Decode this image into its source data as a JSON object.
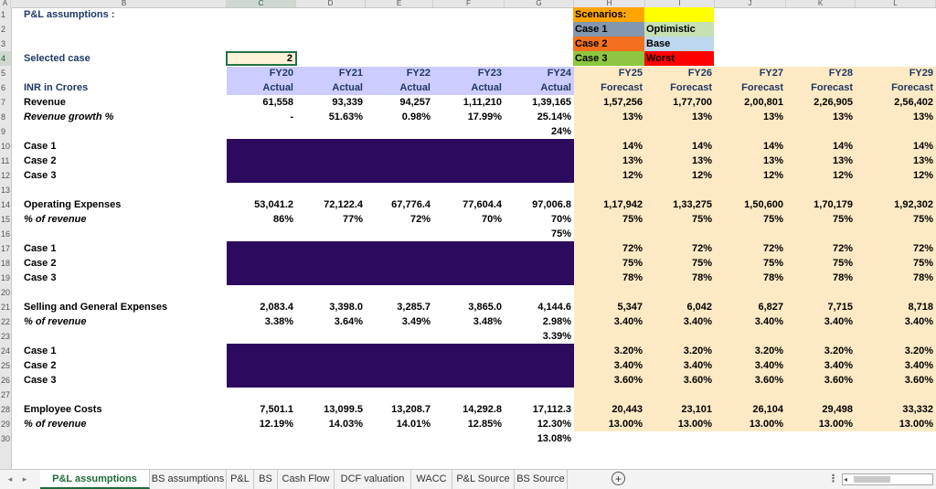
{
  "column_headers": [
    "A",
    "B",
    "C",
    "D",
    "E",
    "F",
    "G",
    "H",
    "I",
    "J",
    "K",
    "L"
  ],
  "selected_column": "C",
  "row_headers": [
    "1",
    "2",
    "3",
    "4",
    "5",
    "6",
    "7",
    "8",
    "9",
    "10",
    "11",
    "12",
    "13",
    "14",
    "15",
    "16",
    "17",
    "18",
    "19",
    "20",
    "21",
    "22",
    "23",
    "24",
    "25",
    "26",
    "27",
    "28",
    "29",
    "30"
  ],
  "selected_row": "4",
  "sheet": {
    "title": "P&L assumptions :",
    "selected_case_label": "Selected case",
    "selected_case_value": "2",
    "scenarios": {
      "header": "Scenarios:",
      "case1": "Case 1",
      "case1_name": "Optimistic",
      "case2": "Case 2",
      "case2_name": "Base",
      "case3": "Case 3",
      "case3_name": "Worst"
    },
    "unit_label": "INR in Crores",
    "years": [
      "FY20",
      "FY21",
      "FY22",
      "FY23",
      "FY24",
      "FY25",
      "FY26",
      "FY27",
      "FY28",
      "FY29"
    ],
    "types": [
      "Actual",
      "Actual",
      "Actual",
      "Actual",
      "Actual",
      "Forecast",
      "Forecast",
      "Forecast",
      "Forecast",
      "Forecast"
    ],
    "rows": [
      {
        "r": 7,
        "label": "Revenue",
        "italic": false,
        "values": [
          "61,558",
          "93,339",
          "94,257",
          "1,11,210",
          "1,39,165",
          "1,57,256",
          "1,77,700",
          "2,00,801",
          "2,26,905",
          "2,56,402"
        ]
      },
      {
        "r": 8,
        "label": "Revenue growth %",
        "italic": true,
        "values": [
          "-",
          "51.63%",
          "0.98%",
          "17.99%",
          "25.14%",
          "13%",
          "13%",
          "13%",
          "13%",
          "13%"
        ]
      },
      {
        "r": 9,
        "label": "",
        "italic": false,
        "values": [
          "",
          "",
          "",
          "",
          "24%",
          "",
          "",
          "",
          "",
          ""
        ]
      },
      {
        "r": 10,
        "label": "Case 1",
        "italic": false,
        "values": [
          "",
          "",
          "",
          "",
          "",
          "14%",
          "14%",
          "14%",
          "14%",
          "14%"
        ]
      },
      {
        "r": 11,
        "label": "Case 2",
        "italic": false,
        "values": [
          "",
          "",
          "",
          "",
          "",
          "13%",
          "13%",
          "13%",
          "13%",
          "13%"
        ]
      },
      {
        "r": 12,
        "label": "Case 3",
        "italic": false,
        "values": [
          "",
          "",
          "",
          "",
          "",
          "12%",
          "12%",
          "12%",
          "12%",
          "12%"
        ]
      },
      {
        "r": 14,
        "label": "Operating Expenses",
        "italic": false,
        "values": [
          "53,041.2",
          "72,122.4",
          "67,776.4",
          "77,604.4",
          "97,006.8",
          "1,17,942",
          "1,33,275",
          "1,50,600",
          "1,70,179",
          "1,92,302"
        ]
      },
      {
        "r": 15,
        "label": "% of revenue",
        "italic": true,
        "values": [
          "86%",
          "77%",
          "72%",
          "70%",
          "70%",
          "75%",
          "75%",
          "75%",
          "75%",
          "75%"
        ]
      },
      {
        "r": 16,
        "label": "",
        "italic": false,
        "values": [
          "",
          "",
          "",
          "",
          "75%",
          "",
          "",
          "",
          "",
          ""
        ]
      },
      {
        "r": 17,
        "label": "Case 1",
        "italic": false,
        "values": [
          "",
          "",
          "",
          "",
          "",
          "72%",
          "72%",
          "72%",
          "72%",
          "72%"
        ]
      },
      {
        "r": 18,
        "label": "Case 2",
        "italic": false,
        "values": [
          "",
          "",
          "",
          "",
          "",
          "75%",
          "75%",
          "75%",
          "75%",
          "75%"
        ]
      },
      {
        "r": 19,
        "label": "Case 3",
        "italic": false,
        "values": [
          "",
          "",
          "",
          "",
          "",
          "78%",
          "78%",
          "78%",
          "78%",
          "78%"
        ]
      },
      {
        "r": 21,
        "label": "Selling and General Expenses",
        "italic": false,
        "values": [
          "2,083.4",
          "3,398.0",
          "3,285.7",
          "3,865.0",
          "4,144.6",
          "5,347",
          "6,042",
          "6,827",
          "7,715",
          "8,718"
        ]
      },
      {
        "r": 22,
        "label": "% of revenue",
        "italic": true,
        "values": [
          "3.38%",
          "3.64%",
          "3.49%",
          "3.48%",
          "2.98%",
          "3.40%",
          "3.40%",
          "3.40%",
          "3.40%",
          "3.40%"
        ]
      },
      {
        "r": 23,
        "label": "",
        "italic": false,
        "values": [
          "",
          "",
          "",
          "",
          "3.39%",
          "",
          "",
          "",
          "",
          ""
        ]
      },
      {
        "r": 24,
        "label": "Case 1",
        "italic": false,
        "values": [
          "",
          "",
          "",
          "",
          "",
          "3.20%",
          "3.20%",
          "3.20%",
          "3.20%",
          "3.20%"
        ]
      },
      {
        "r": 25,
        "label": "Case 2",
        "italic": false,
        "values": [
          "",
          "",
          "",
          "",
          "",
          "3.40%",
          "3.40%",
          "3.40%",
          "3.40%",
          "3.40%"
        ]
      },
      {
        "r": 26,
        "label": "Case 3",
        "italic": false,
        "values": [
          "",
          "",
          "",
          "",
          "",
          "3.60%",
          "3.60%",
          "3.60%",
          "3.60%",
          "3.60%"
        ]
      },
      {
        "r": 28,
        "label": "Employee Costs",
        "italic": false,
        "values": [
          "7,501.1",
          "13,099.5",
          "13,208.7",
          "14,292.8",
          "17,112.3",
          "20,443",
          "23,101",
          "26,104",
          "29,498",
          "33,332"
        ]
      },
      {
        "r": 29,
        "label": "% of revenue",
        "italic": true,
        "values": [
          "12.19%",
          "14.03%",
          "14.01%",
          "12.85%",
          "12.30%",
          "13.00%",
          "13.00%",
          "13.00%",
          "13.00%",
          "13.00%"
        ]
      },
      {
        "r": 30,
        "label": "",
        "italic": false,
        "values": [
          "",
          "",
          "",
          "",
          "13.08%",
          "",
          "",
          "",
          "",
          ""
        ]
      }
    ]
  },
  "tabs": [
    "P&L assumptions",
    "BS assumptions",
    "P&L",
    "BS",
    "Cash Flow",
    "DCF valuation",
    "WACC",
    "P&L Source",
    "BS Source"
  ],
  "active_tab": "P&L assumptions",
  "tabbar_icons": {
    "prev": "◂",
    "next": "▸",
    "add": "+",
    "menu": "⋮",
    "scroll_left": "◂"
  },
  "colors": {
    "header_blue": "#ccccff",
    "forecast_bg": "#fde9c4",
    "case_block": "#2c0a5e",
    "scenario_header": "#ffa500",
    "scenario_header_value": "#ffff00",
    "case1": "#8497b0",
    "case2": "#f4701e",
    "case3": "#8dc73f",
    "optimistic": "#c6e0b4",
    "base": "#bdd7ee",
    "worst": "#ff0000",
    "selected_case_bg": "#fdf1d8",
    "accent_green": "#217346"
  }
}
